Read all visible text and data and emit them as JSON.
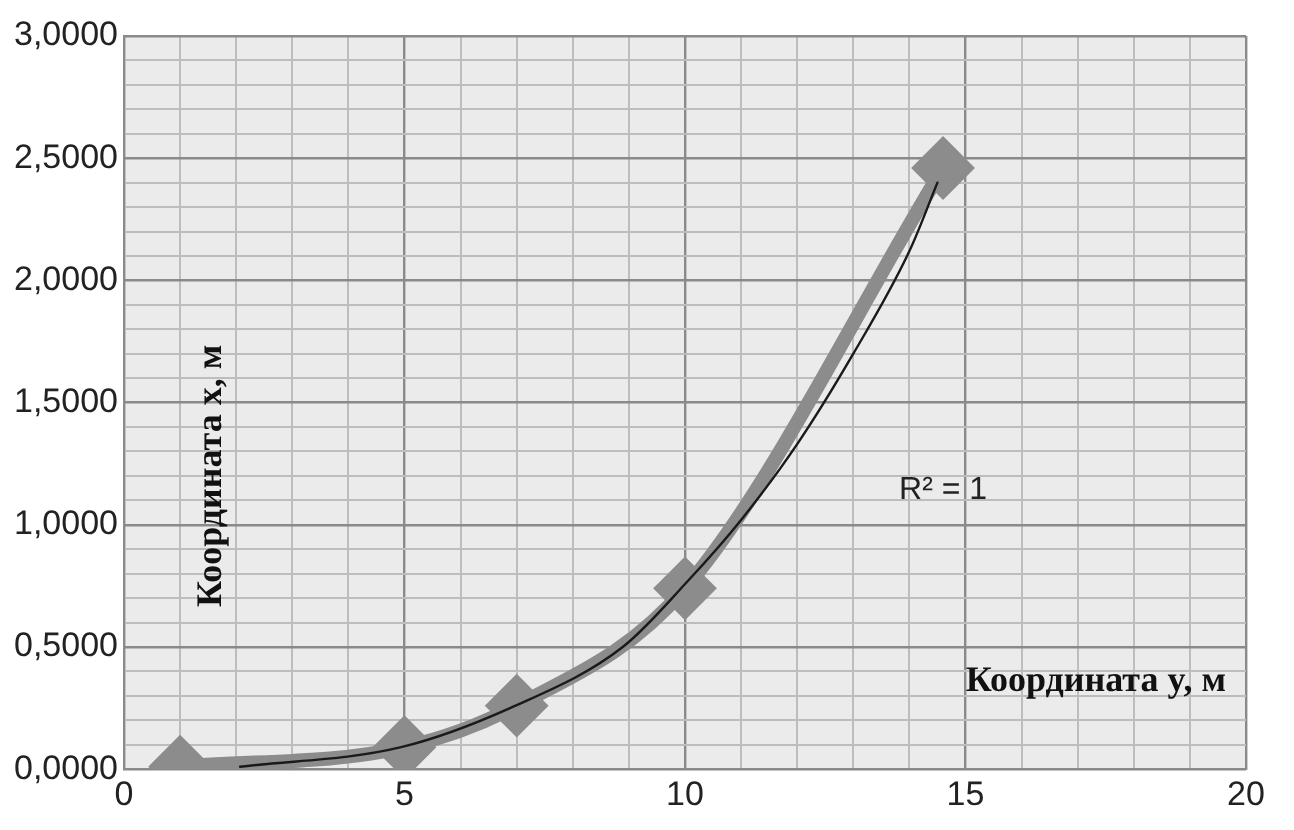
{
  "chart_data": {
    "type": "scatter",
    "xlabel": "Координата y, м",
    "ylabel": "Координата x, м",
    "xlim": [
      0,
      20
    ],
    "ylim": [
      0,
      3
    ],
    "xticks": [
      0,
      {
        "value": 1,
        "label": null
      },
      {
        "value": 2,
        "label": null
      },
      {
        "value": 3,
        "label": null
      },
      {
        "value": 4,
        "label": null
      },
      5,
      {
        "value": 6,
        "label": null
      },
      {
        "value": 7,
        "label": null
      },
      {
        "value": 8,
        "label": null
      },
      {
        "value": 9,
        "label": null
      },
      10,
      {
        "value": 11,
        "label": null
      },
      {
        "value": 12,
        "label": null
      },
      {
        "value": 13,
        "label": null
      },
      {
        "value": 14,
        "label": null
      },
      15,
      {
        "value": 16,
        "label": null
      },
      {
        "value": 17,
        "label": null
      },
      {
        "value": 18,
        "label": null
      },
      {
        "value": 19,
        "label": null
      },
      20
    ],
    "yticks": [
      {
        "value": 0,
        "label": "0,0000"
      },
      {
        "value": 0.1,
        "label": null
      },
      {
        "value": 0.2,
        "label": null
      },
      {
        "value": 0.3,
        "label": null
      },
      {
        "value": 0.4,
        "label": null
      },
      {
        "value": 0.5,
        "label": "0,5000"
      },
      {
        "value": 0.6,
        "label": null
      },
      {
        "value": 0.7,
        "label": null
      },
      {
        "value": 0.8,
        "label": null
      },
      {
        "value": 0.9,
        "label": null
      },
      {
        "value": 1,
        "label": "1,0000"
      },
      {
        "value": 1.1,
        "label": null
      },
      {
        "value": 1.2,
        "label": null
      },
      {
        "value": 1.3,
        "label": null
      },
      {
        "value": 1.4,
        "label": null
      },
      {
        "value": 1.5,
        "label": "1,5000"
      },
      {
        "value": 1.6,
        "label": null
      },
      {
        "value": 1.7,
        "label": null
      },
      {
        "value": 1.8,
        "label": null
      },
      {
        "value": 1.9,
        "label": null
      },
      {
        "value": 2,
        "label": "2,0000"
      },
      {
        "value": 2.1,
        "label": null
      },
      {
        "value": 2.2,
        "label": null
      },
      {
        "value": 2.3,
        "label": null
      },
      {
        "value": 2.4,
        "label": null
      },
      {
        "value": 2.5,
        "label": "2,5000"
      },
      {
        "value": 2.6,
        "label": null
      },
      {
        "value": 2.7,
        "label": null
      },
      {
        "value": 2.8,
        "label": null
      },
      {
        "value": 2.9,
        "label": null
      },
      {
        "value": 3,
        "label": "3,0000"
      }
    ],
    "grid": true,
    "legend": false,
    "annotations": [
      "R² = 1"
    ],
    "series": [
      {
        "type": "line",
        "marker": "diamond",
        "line_style": "solid",
        "color": "#8c8c8c",
        "x": [
          1,
          5,
          7,
          10,
          14.6
        ],
        "values": [
          0.01,
          0.09,
          0.26,
          0.74,
          2.46
        ]
      },
      {
        "type": "line",
        "marker": "none",
        "line_style": "solid",
        "color": "#1a1a1a",
        "x": [
          2.07,
          4.94,
          6.98,
          8.89,
          10.05,
          11,
          12,
          13,
          14,
          14.5
        ],
        "values": [
          0.01,
          0.09,
          0.26,
          0.5,
          0.77,
          1.02,
          1.33,
          1.7,
          2.12,
          2.4
        ]
      }
    ]
  }
}
